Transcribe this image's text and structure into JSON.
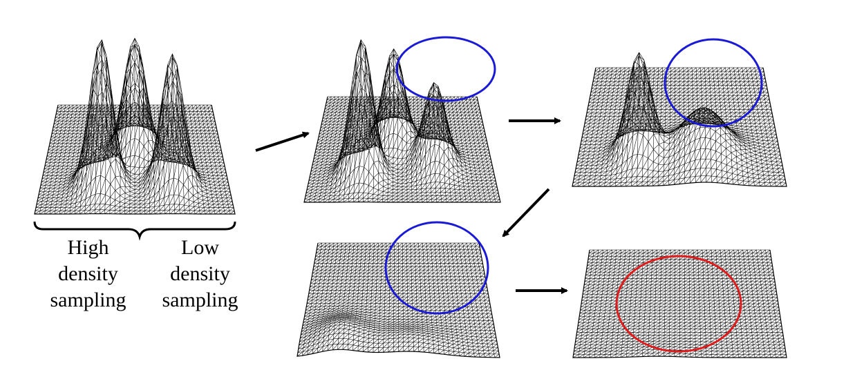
{
  "labels": {
    "high": [
      "High",
      "density",
      "sampling"
    ],
    "low": [
      "Low",
      "density",
      "sampling"
    ]
  },
  "panels": [
    {
      "id": "p0",
      "surface": "three-peaks-uneven-mesh",
      "highlight": null
    },
    {
      "id": "p1",
      "surface": "three-peaks",
      "highlight": "blue"
    },
    {
      "id": "p2",
      "surface": "two-bumps",
      "highlight": "blue"
    },
    {
      "id": "p3",
      "surface": "low-hill",
      "highlight": "blue"
    },
    {
      "id": "p4",
      "surface": "flat",
      "highlight": "red"
    }
  ],
  "colors": {
    "mesh": "#000000",
    "highlight_blue": "#1a1ad6",
    "highlight_red": "#e01b1b",
    "arrow": "#000000"
  },
  "icons": [
    "brace-left",
    "brace-right",
    "arrow-right",
    "arrow-down-left"
  ]
}
